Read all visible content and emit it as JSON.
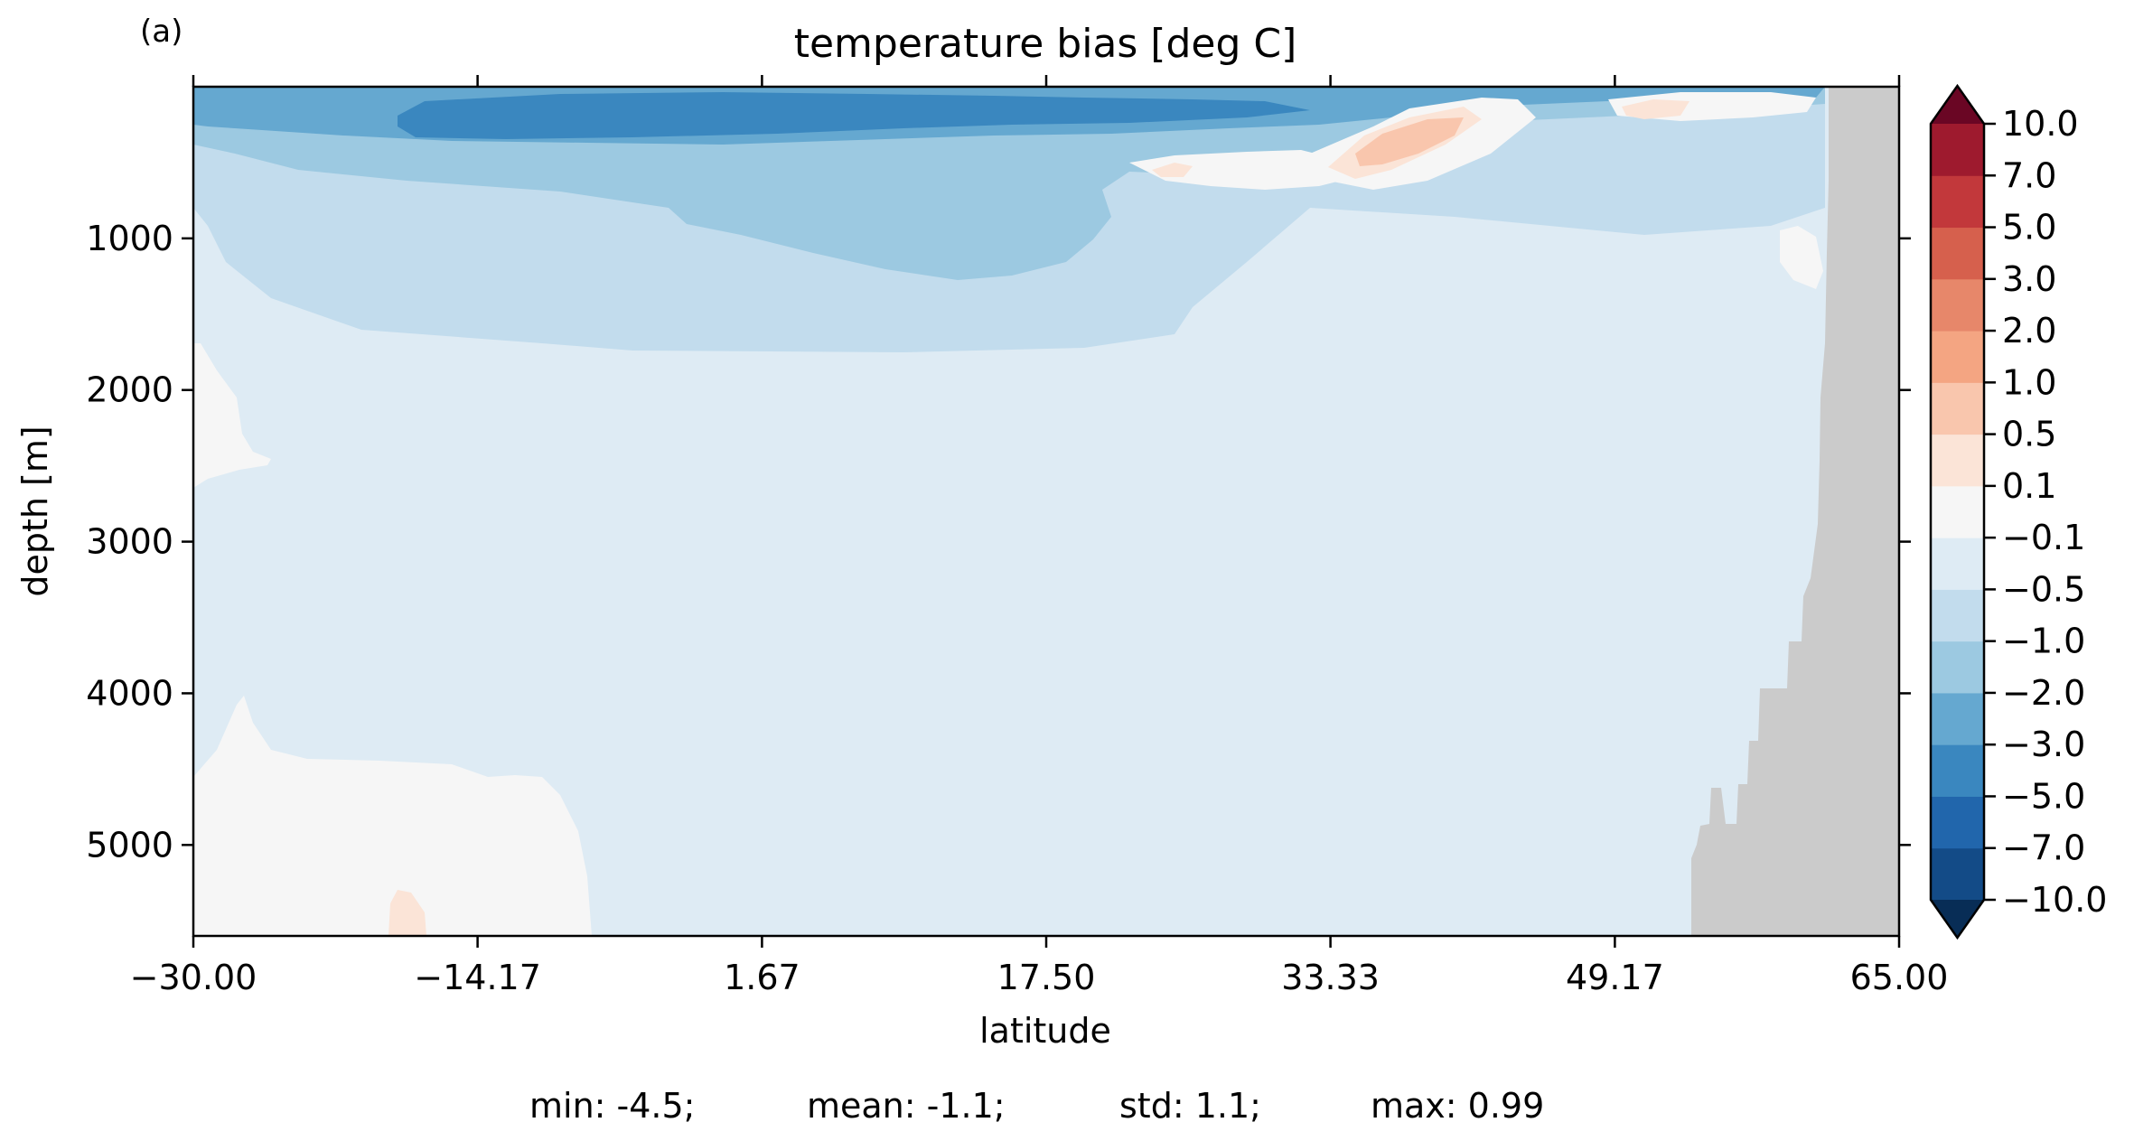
{
  "figure": {
    "panel_label": "(a)",
    "stats": {
      "min": "min: -4.5;",
      "mean": "mean: -1.1;",
      "std": "std: 1.1;",
      "max": "max: 0.99"
    }
  },
  "chart_data": {
    "type": "heatmap",
    "title": "temperature bias [deg C]",
    "xlabel": "latitude",
    "ylabel": "depth [m]",
    "xlim": [
      -30.0,
      65.0
    ],
    "ylim": [
      5600,
      0
    ],
    "x_ticks": [
      -30.0,
      -14.17,
      1.67,
      17.5,
      33.33,
      49.17,
      65.0
    ],
    "x_tick_labels": [
      "−30.00",
      "−14.17",
      "1.67",
      "17.50",
      "33.33",
      "49.17",
      "65.00"
    ],
    "y_ticks": [
      1000,
      2000,
      3000,
      4000,
      5000
    ],
    "y_tick_labels": [
      "1000",
      "2000",
      "3000",
      "4000",
      "5000"
    ],
    "colorbar": {
      "levels": [
        -10.0,
        -7.0,
        -5.0,
        -3.0,
        -2.0,
        -1.0,
        -0.5,
        -0.1,
        0.1,
        0.5,
        1.0,
        2.0,
        3.0,
        5.0,
        7.0,
        10.0
      ],
      "tick_labels": [
        "−10.0",
        "−7.0",
        "−5.0",
        "−3.0",
        "−2.0",
        "−1.0",
        "−0.5",
        "−0.1",
        "0.1",
        "0.5",
        "1.0",
        "2.0",
        "3.0",
        "5.0",
        "7.0",
        "10.0"
      ],
      "band_colors": [
        "#134b87",
        "#2166ac",
        "#3a87bf",
        "#65a8d0",
        "#9cc9e1",
        "#c2dced",
        "#deebf4",
        "#f6f6f6",
        "#fbe4d7",
        "#f9c6ad",
        "#f4a582",
        "#e7876a",
        "#d6604d",
        "#c2383b",
        "#9e1a2e"
      ],
      "extend_low_color": "#082d56",
      "extend_high_color": "#6a0624"
    },
    "colors": {
      "background_field": "#deebf4",
      "land_mask": "#cbcbcb"
    },
    "grid": false
  }
}
